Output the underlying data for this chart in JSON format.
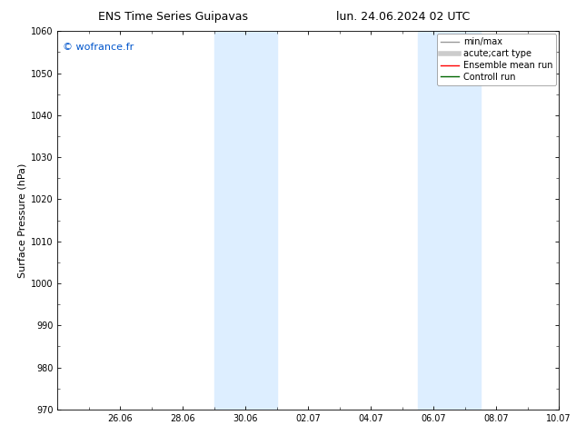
{
  "title_left": "ENS Time Series Guipavas",
  "title_right": "lun. 24.06.2024 02 UTC",
  "ylabel": "Surface Pressure (hPa)",
  "ylim": [
    970,
    1060
  ],
  "yticks": [
    970,
    980,
    990,
    1000,
    1010,
    1020,
    1030,
    1040,
    1050,
    1060
  ],
  "xtick_labels": [
    "26.06",
    "28.06",
    "30.06",
    "02.07",
    "04.07",
    "06.07",
    "08.07",
    "10.07"
  ],
  "xtick_positions": [
    2,
    4,
    6,
    8,
    10,
    12,
    14,
    16
  ],
  "xlim": [
    0,
    16
  ],
  "shaded_regions": [
    {
      "x_start": 5.0,
      "x_end": 7.0,
      "color": "#ddeeff"
    },
    {
      "x_start": 11.5,
      "x_end": 13.5,
      "color": "#ddeeff"
    }
  ],
  "watermark": "© wofrance.fr",
  "watermark_color": "#0055cc",
  "legend_items": [
    {
      "label": "min/max",
      "color": "#999999",
      "lw": 1.0,
      "style": "solid"
    },
    {
      "label": "acute;cart type",
      "color": "#cccccc",
      "lw": 4,
      "style": "solid"
    },
    {
      "label": "Ensemble mean run",
      "color": "#ff0000",
      "lw": 1.0,
      "style": "solid"
    },
    {
      "label": "Controll run",
      "color": "#006600",
      "lw": 1.0,
      "style": "solid"
    }
  ],
  "background_color": "#ffffff",
  "plot_bg_color": "#ffffff",
  "tick_fontsize": 7,
  "label_fontsize": 8,
  "title_fontsize": 9,
  "legend_fontsize": 7,
  "watermark_fontsize": 8
}
